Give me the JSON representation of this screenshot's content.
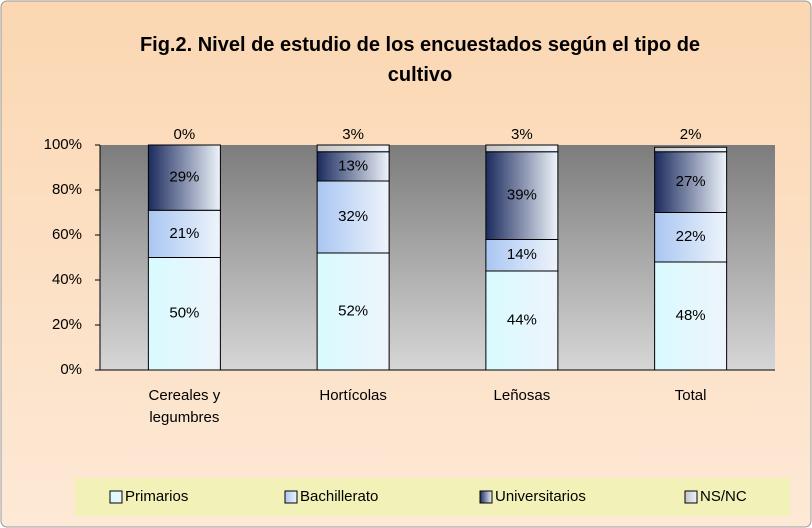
{
  "chart_data": {
    "type": "stacked_bar",
    "title": "Fig.2. Nivel de estudio de los encuestados según el tipo de cultivo",
    "categories": [
      "Cereales y legumbres",
      "Hortícolas",
      "Leñosas",
      "Total"
    ],
    "series": [
      {
        "name": "Primarios",
        "color": "#d8fbff",
        "values": [
          50,
          52,
          44,
          48
        ],
        "value_labels": [
          "50%",
          "52%",
          "44%",
          "48%"
        ]
      },
      {
        "name": "Bachillerato",
        "color": "#a9c6f2",
        "values": [
          21,
          32,
          14,
          22
        ],
        "value_labels": [
          "21%",
          "32%",
          "14%",
          "22%"
        ]
      },
      {
        "name": "Universitarios",
        "color": "#1c2b5e",
        "values": [
          29,
          13,
          39,
          27
        ],
        "value_labels": [
          "29%",
          "13%",
          "39%",
          "27%"
        ]
      },
      {
        "name": "NS/NC",
        "color": "#c4c4c4",
        "values": [
          0,
          3,
          3,
          2
        ],
        "value_labels": [
          "0%",
          "3%",
          "3%",
          "2%"
        ]
      }
    ],
    "ylim": [
      0,
      100
    ],
    "yticks": [
      {
        "value": 0,
        "label": "0%"
      },
      {
        "value": 20,
        "label": "20%"
      },
      {
        "value": 40,
        "label": "40%"
      },
      {
        "value": 60,
        "label": "60%"
      },
      {
        "value": 80,
        "label": "80%"
      },
      {
        "value": 100,
        "label": "100%"
      }
    ],
    "legend": "bottom"
  }
}
